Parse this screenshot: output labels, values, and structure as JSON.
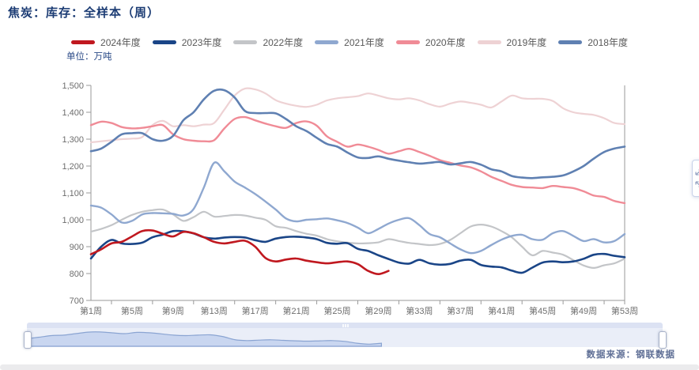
{
  "source_label": "数据来源：钢联数据",
  "chart_data": {
    "type": "line",
    "title": "焦炭：库存：全样本（周）",
    "unit_label": "单位：万吨",
    "xlabel": "",
    "ylabel": "万吨",
    "ylim": [
      700,
      1500
    ],
    "y_tick_labels": [
      "700",
      "800",
      "900",
      "1,000",
      "1,100",
      "1,200",
      "1,300",
      "1,400",
      "1,500"
    ],
    "x_tick_weeks": [
      1,
      5,
      9,
      13,
      17,
      21,
      25,
      29,
      33,
      37,
      41,
      45,
      49,
      53
    ],
    "x_tick_labels": [
      "第1周",
      "第5周",
      "第9周",
      "第13周",
      "第17周",
      "第21周",
      "第25周",
      "第29周",
      "第33周",
      "第37周",
      "第41周",
      "第45周",
      "第49周",
      "第53周"
    ],
    "grid": false,
    "legend_position": "top",
    "z_order": [
      "2019年度",
      "2020年度",
      "2022年度",
      "2021年度",
      "2018年度",
      "2023年度",
      "2024年度"
    ],
    "series": [
      {
        "name": "2024年度",
        "color": "#c0181f",
        "width": 2.6,
        "values": [
          872,
          890,
          912,
          918,
          938,
          958,
          960,
          948,
          938,
          955,
          950,
          935,
          918,
          912,
          918,
          922,
          900,
          858,
          845,
          852,
          856,
          848,
          842,
          838,
          842,
          845,
          835,
          810,
          798,
          810
        ]
      },
      {
        "name": "2023年度",
        "color": "#1a4587",
        "width": 2.6,
        "values": [
          856,
          900,
          925,
          912,
          910,
          915,
          935,
          945,
          958,
          957,
          949,
          935,
          930,
          934,
          936,
          934,
          924,
          918,
          930,
          936,
          937,
          934,
          928,
          914,
          911,
          913,
          892,
          884,
          868,
          854,
          841,
          837,
          851,
          838,
          833,
          836,
          848,
          851,
          832,
          826,
          823,
          811,
          803,
          822,
          841,
          845,
          842,
          845,
          855,
          870,
          873,
          866,
          861
        ]
      },
      {
        "name": "2022年度",
        "color": "#c3c5c8",
        "width": 2.2,
        "values": [
          956,
          966,
          980,
          1000,
          1018,
          1030,
          1036,
          1038,
          1020,
          996,
          1010,
          1030,
          1012,
          1014,
          1018,
          1016,
          1008,
          1000,
          976,
          970,
          958,
          948,
          941,
          928,
          920,
          915,
          912,
          913,
          916,
          928,
          921,
          914,
          910,
          906,
          910,
          925,
          950,
          975,
          982,
          975,
          958,
          935,
          900,
          868,
          884,
          878,
          870,
          850,
          830,
          821,
          831,
          838,
          855
        ]
      },
      {
        "name": "2021年度",
        "color": "#8fa8d0",
        "width": 2.4,
        "values": [
          1053,
          1045,
          1020,
          990,
          996,
          1020,
          1025,
          1024,
          1022,
          1016,
          1040,
          1120,
          1212,
          1180,
          1142,
          1120,
          1096,
          1068,
          1038,
          1005,
          994,
          1000,
          1002,
          1005,
          998,
          988,
          971,
          950,
          966,
          986,
          1000,
          1006,
          980,
          947,
          935,
          912,
          890,
          876,
          884,
          906,
          926,
          940,
          944,
          928,
          926,
          950,
          958,
          940,
          921,
          928,
          916,
          921,
          947
        ]
      },
      {
        "name": "2020年度",
        "color": "#f08b96",
        "width": 2.4,
        "values": [
          1352,
          1365,
          1360,
          1345,
          1340,
          1342,
          1348,
          1352,
          1318,
          1300,
          1294,
          1292,
          1296,
          1340,
          1375,
          1382,
          1370,
          1358,
          1348,
          1342,
          1360,
          1366,
          1350,
          1310,
          1290,
          1272,
          1280,
          1272,
          1260,
          1246,
          1255,
          1264,
          1252,
          1238,
          1222,
          1212,
          1202,
          1195,
          1180,
          1160,
          1145,
          1130,
          1122,
          1120,
          1118,
          1126,
          1122,
          1118,
          1106,
          1090,
          1085,
          1070,
          1062
        ]
      },
      {
        "name": "2019年度",
        "color": "#eed2d4",
        "width": 2.2,
        "values": [
          1288,
          1292,
          1296,
          1300,
          1302,
          1308,
          1352,
          1368,
          1348,
          1352,
          1348,
          1354,
          1360,
          1410,
          1462,
          1488,
          1485,
          1470,
          1445,
          1432,
          1424,
          1420,
          1428,
          1444,
          1452,
          1456,
          1460,
          1470,
          1462,
          1452,
          1448,
          1452,
          1444,
          1430,
          1421,
          1432,
          1440,
          1435,
          1428,
          1418,
          1440,
          1462,
          1452,
          1450,
          1450,
          1442,
          1415,
          1400,
          1394,
          1390,
          1378,
          1360,
          1356
        ]
      },
      {
        "name": "2018年度",
        "color": "#5f80b2",
        "width": 2.6,
        "values": [
          1255,
          1265,
          1290,
          1318,
          1322,
          1322,
          1300,
          1294,
          1312,
          1370,
          1400,
          1448,
          1480,
          1482,
          1455,
          1405,
          1397,
          1397,
          1396,
          1375,
          1348,
          1330,
          1305,
          1282,
          1272,
          1250,
          1232,
          1230,
          1236,
          1227,
          1220,
          1214,
          1209,
          1212,
          1215,
          1206,
          1210,
          1215,
          1205,
          1188,
          1180,
          1163,
          1157,
          1155,
          1158,
          1160,
          1165,
          1180,
          1200,
          1228,
          1252,
          1265,
          1272
        ]
      }
    ]
  },
  "slider": {
    "preview_series": "2024年度",
    "track_color": "#eaeef8",
    "move_handle_color": "#dce2f3",
    "area_fill": "#c9d6f0",
    "area_line": "#8aa4d2"
  },
  "icons": {
    "expand_button": "resize-arrows"
  },
  "axis_style": {
    "line_color": "#9a9a9a",
    "label_color": "#6e6e6e"
  }
}
